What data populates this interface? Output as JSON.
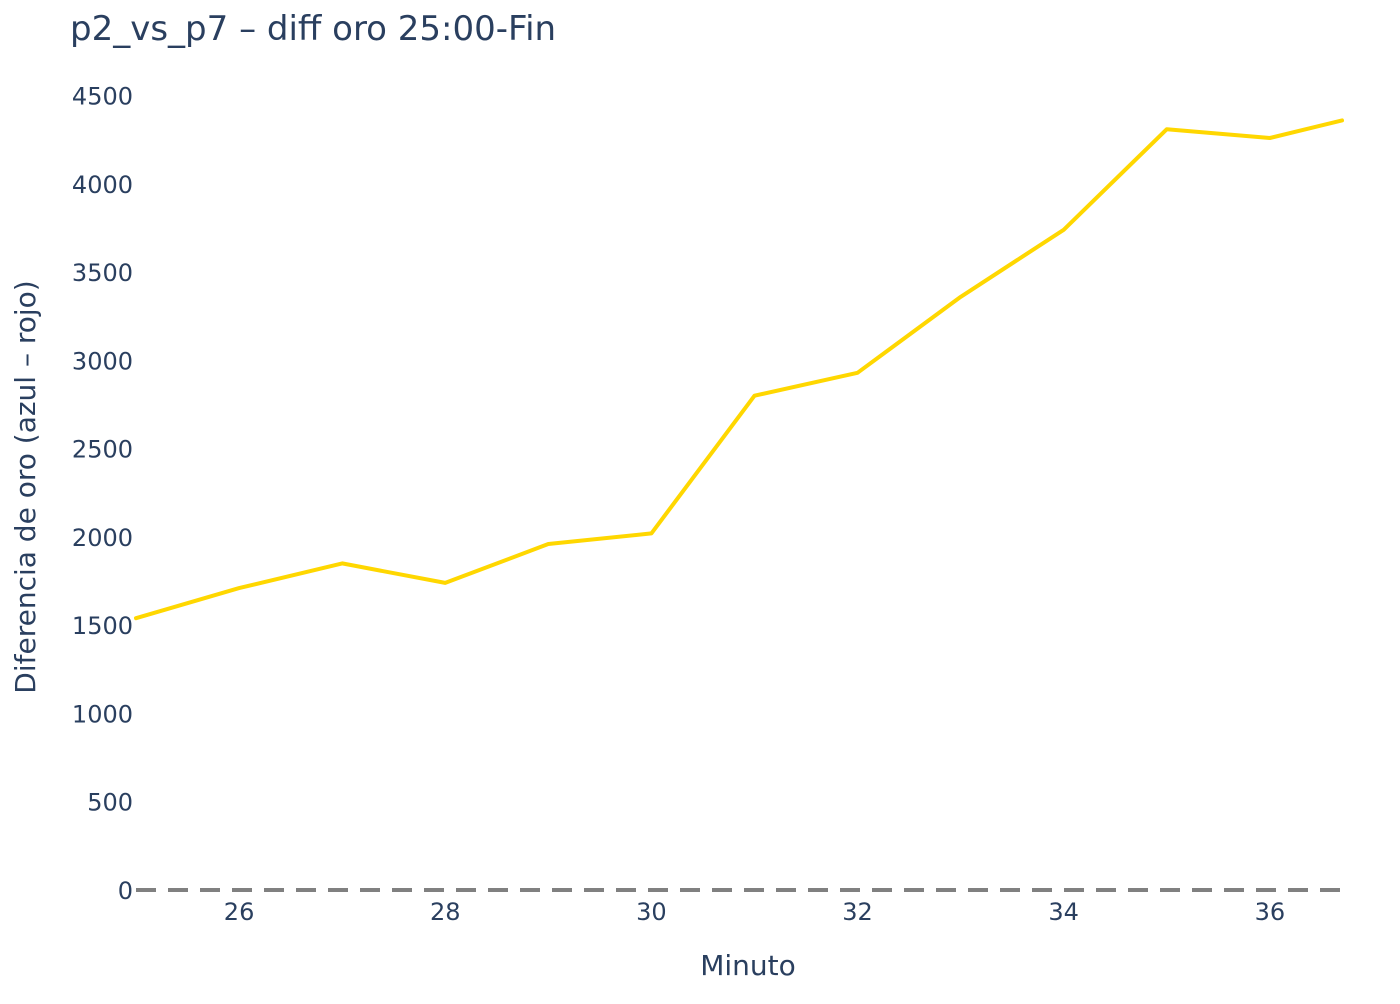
{
  "chart_data": {
    "type": "line",
    "title": "p2_vs_p7 – diff oro 25:00-Fin",
    "xlabel": "Minuto",
    "ylabel": "Diferencia de oro (azul – rojo)",
    "xlim": [
      25.0,
      36.7
    ],
    "ylim": [
      0,
      4600
    ],
    "x_ticks": [
      26,
      28,
      30,
      32,
      34,
      36
    ],
    "y_ticks": [
      0,
      500,
      1000,
      1500,
      2000,
      2500,
      3000,
      3500,
      4000,
      4500
    ],
    "grid": false,
    "series": [
      {
        "x": [
          25,
          26,
          27,
          28,
          29,
          30,
          31,
          32,
          33,
          34,
          35,
          36,
          36.7
        ],
        "y": [
          1540,
          1710,
          1850,
          1740,
          1960,
          2020,
          2800,
          2930,
          3360,
          3740,
          4310,
          4260,
          4360
        ],
        "color": "#FFD700"
      }
    ],
    "reference_line": {
      "y": 0,
      "style": "dashed",
      "color": "#808080"
    }
  }
}
